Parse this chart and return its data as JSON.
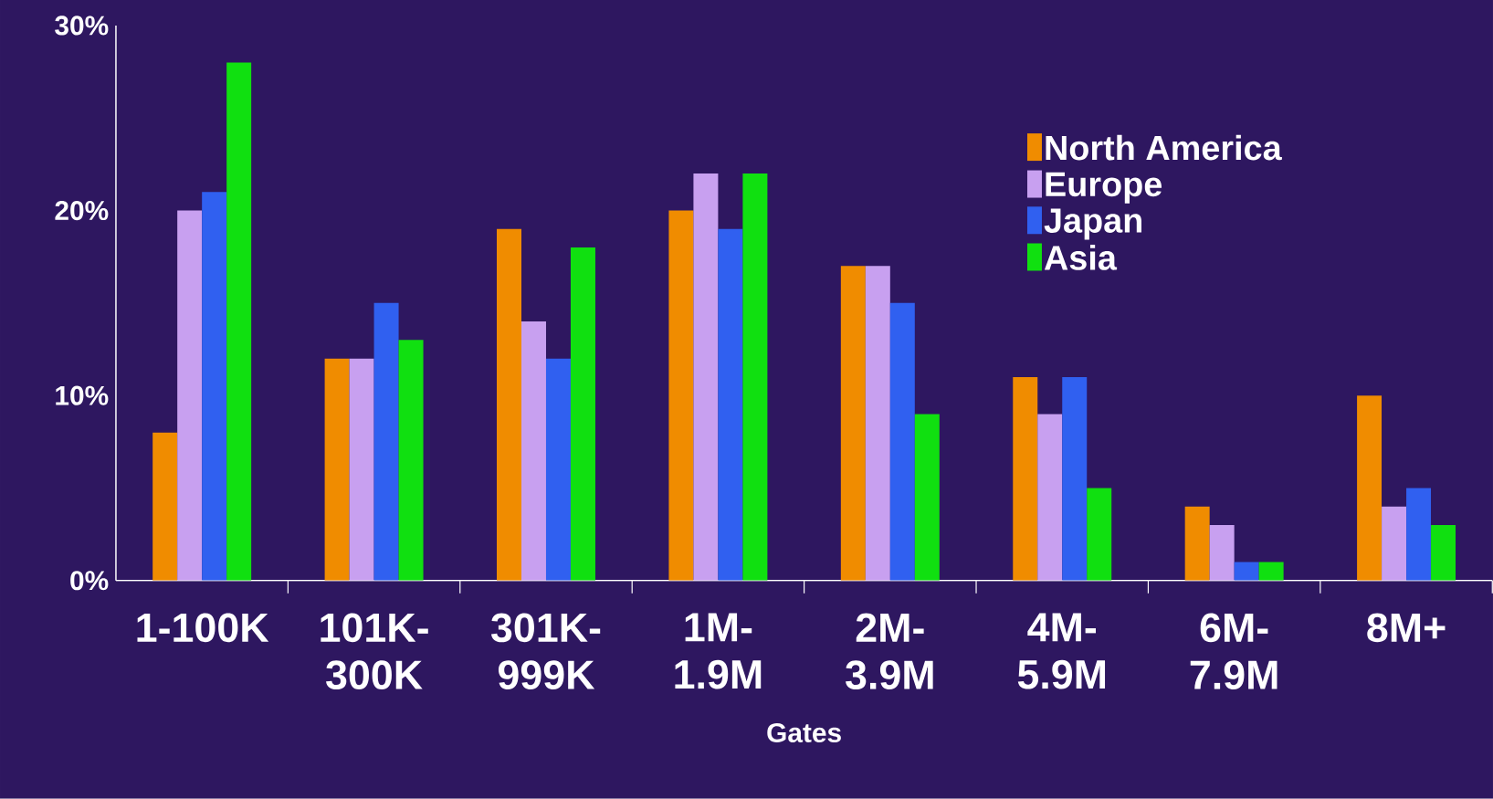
{
  "chart_data": {
    "type": "bar",
    "xlabel": "Gates",
    "categories": [
      "1-100K",
      "101K-300K",
      "301K-999K",
      "1M-1.9M",
      "2M-3.9M",
      "4M-5.9M",
      "6M-7.9M",
      "8M+"
    ],
    "series": [
      {
        "name": "North America",
        "color": "#f08c00",
        "values": [
          8,
          12,
          19,
          20,
          17,
          11,
          4,
          10
        ]
      },
      {
        "name": "Europe",
        "color": "#c8a0f0",
        "values": [
          20,
          12,
          14,
          22,
          17,
          9,
          3,
          4
        ]
      },
      {
        "name": "Japan",
        "color": "#3060f0",
        "values": [
          21,
          15,
          12,
          19,
          15,
          11,
          1,
          5
        ]
      },
      {
        "name": "Asia",
        "color": "#10e010",
        "values": [
          28,
          13,
          18,
          22,
          9,
          5,
          1,
          3
        ]
      }
    ],
    "ylim": [
      0,
      30
    ],
    "yticks": [
      {
        "value": 0,
        "label": "0%"
      },
      {
        "value": 10,
        "label": "10%"
      },
      {
        "value": 20,
        "label": "20%"
      },
      {
        "value": 30,
        "label": "30%"
      }
    ],
    "grid": false,
    "legend": "top right"
  }
}
